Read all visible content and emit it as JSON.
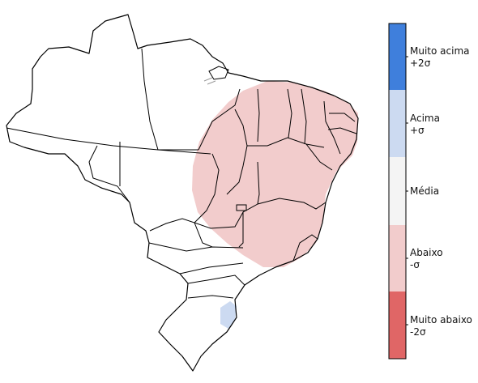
{
  "legend": {
    "categories": [
      {
        "line1": "Muito acima",
        "line2": "+2σ",
        "color": "#3f7fdc"
      },
      {
        "line1": "Acima",
        "line2": "+σ",
        "color": "#ccdaf1"
      },
      {
        "line1": "Média",
        "line2": "",
        "color": "#f4f4f4"
      },
      {
        "line1": "Abaixo",
        "line2": "-σ",
        "color": "#f2cccc"
      },
      {
        "line1": "Muito abaixo",
        "line2": "-2σ",
        "color": "#e06666"
      }
    ]
  },
  "map": {
    "anomaly_regions": [
      {
        "region": "northeast-and-central",
        "category": "Abaixo -σ",
        "color": "#f2cccc"
      },
      {
        "region": "south-lagoon",
        "category": "Acima +σ",
        "color": "#ccdaf1"
      }
    ]
  }
}
